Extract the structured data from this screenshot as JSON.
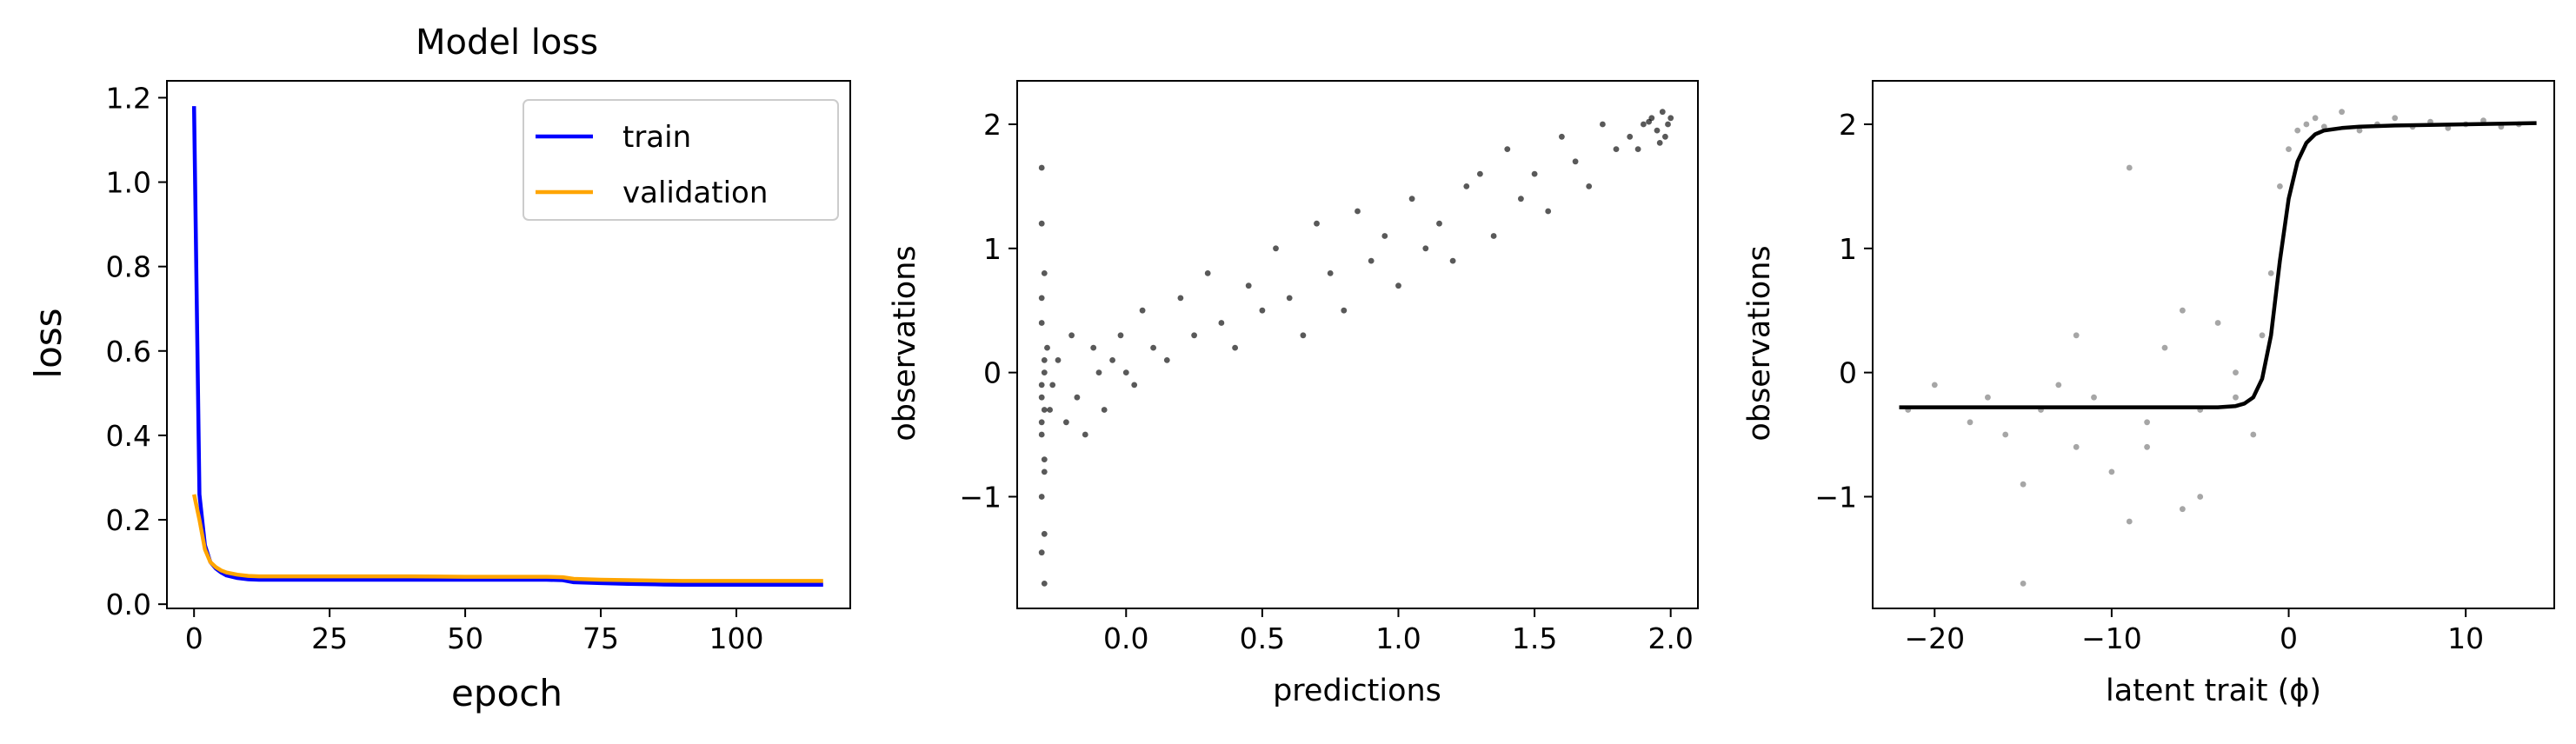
{
  "chart_data": [
    {
      "type": "line",
      "title": "Model loss",
      "xlabel": "epoch",
      "ylabel": "loss",
      "xlim": [
        -5,
        121
      ],
      "ylim": [
        -0.01,
        1.24
      ],
      "xticks": [
        0,
        25,
        50,
        75,
        100
      ],
      "xtick_labels": [
        "0",
        "25",
        "50",
        "75",
        "100"
      ],
      "yticks": [
        0.0,
        0.2,
        0.4,
        0.6,
        0.8,
        1.0,
        1.2
      ],
      "ytick_labels": [
        "0.0",
        "0.2",
        "0.4",
        "0.6",
        "0.8",
        "1.0",
        "1.2"
      ],
      "legend_position": "top-right",
      "grid": false,
      "series": [
        {
          "name": "train",
          "color": "#0000ff",
          "x": [
            0,
            1,
            2,
            3,
            4,
            5,
            6,
            8,
            10,
            12,
            15,
            20,
            30,
            40,
            50,
            60,
            65,
            68,
            70,
            75,
            80,
            85,
            90,
            100,
            110,
            116
          ],
          "y": [
            1.18,
            0.26,
            0.14,
            0.1,
            0.085,
            0.075,
            0.068,
            0.062,
            0.059,
            0.058,
            0.058,
            0.058,
            0.058,
            0.058,
            0.058,
            0.058,
            0.058,
            0.057,
            0.052,
            0.05,
            0.048,
            0.047,
            0.046,
            0.046,
            0.046,
            0.046
          ]
        },
        {
          "name": "validation",
          "color": "#ffa500",
          "x": [
            0,
            1,
            2,
            3,
            4,
            5,
            6,
            8,
            10,
            12,
            15,
            20,
            30,
            40,
            50,
            60,
            65,
            68,
            70,
            75,
            80,
            85,
            90,
            100,
            110,
            116
          ],
          "y": [
            0.26,
            0.2,
            0.13,
            0.1,
            0.088,
            0.08,
            0.075,
            0.07,
            0.067,
            0.066,
            0.066,
            0.066,
            0.066,
            0.066,
            0.065,
            0.065,
            0.065,
            0.064,
            0.06,
            0.058,
            0.057,
            0.056,
            0.055,
            0.055,
            0.055,
            0.055
          ]
        }
      ]
    },
    {
      "type": "scatter",
      "title": "",
      "xlabel": "predictions",
      "ylabel": "observations",
      "xlim": [
        -0.4,
        2.1
      ],
      "ylim": [
        -1.9,
        2.35
      ],
      "xticks": [
        0.0,
        0.5,
        1.0,
        1.5,
        2.0
      ],
      "xtick_labels": [
        "0.0",
        "0.5",
        "1.0",
        "1.5",
        "2.0"
      ],
      "yticks": [
        -1,
        0,
        1,
        2
      ],
      "ytick_labels": [
        "−1",
        "0",
        "1",
        "2"
      ],
      "grid": false,
      "point_color": "#000000",
      "point_opacity": 0.65,
      "series": [
        {
          "name": "",
          "x": [
            -0.31,
            -0.31,
            -0.3,
            -0.31,
            -0.3,
            -0.31,
            -0.3,
            -0.31,
            -0.3,
            -0.31,
            -0.3,
            -0.31,
            -0.3,
            -0.29,
            -0.31,
            -0.3,
            -0.31,
            -0.31,
            -0.3,
            -0.28,
            -0.27,
            -0.25,
            -0.22,
            -0.2,
            -0.18,
            -0.15,
            -0.12,
            -0.1,
            -0.08,
            -0.05,
            -0.02,
            0.0,
            0.03,
            0.06,
            0.1,
            0.15,
            0.2,
            0.25,
            0.3,
            0.35,
            0.4,
            0.45,
            0.5,
            0.55,
            0.6,
            0.65,
            0.7,
            0.75,
            0.8,
            0.85,
            0.9,
            0.95,
            1.0,
            1.05,
            1.1,
            1.15,
            1.2,
            1.25,
            1.3,
            1.35,
            1.4,
            1.45,
            1.5,
            1.55,
            1.6,
            1.65,
            1.7,
            1.75,
            1.8,
            1.85,
            1.9,
            1.93,
            1.95,
            1.97,
            1.98,
            1.99,
            2.0,
            1.96,
            1.92,
            1.88
          ],
          "y": [
            1.65,
            1.2,
            0.8,
            0.4,
            0.1,
            -0.1,
            -0.3,
            -0.5,
            -0.7,
            -1.0,
            -1.3,
            -1.45,
            -1.7,
            0.2,
            -0.2,
            0.0,
            -0.4,
            0.6,
            -0.8,
            -0.3,
            -0.1,
            0.1,
            -0.4,
            0.3,
            -0.2,
            -0.5,
            0.2,
            0.0,
            -0.3,
            0.1,
            0.3,
            0.0,
            -0.1,
            0.5,
            0.2,
            0.1,
            0.6,
            0.3,
            0.8,
            0.4,
            0.2,
            0.7,
            0.5,
            1.0,
            0.6,
            0.3,
            1.2,
            0.8,
            0.5,
            1.3,
            0.9,
            1.1,
            0.7,
            1.4,
            1.0,
            1.2,
            0.9,
            1.5,
            1.6,
            1.1,
            1.8,
            1.4,
            1.6,
            1.3,
            1.9,
            1.7,
            1.5,
            2.0,
            1.8,
            1.9,
            2.0,
            2.05,
            1.95,
            2.1,
            1.9,
            2.0,
            2.05,
            1.85,
            2.02,
            1.8
          ]
        }
      ]
    },
    {
      "type": "scatter",
      "title": "",
      "xlabel": "latent trait (ϕ)",
      "ylabel": "observations",
      "xlim": [
        -23.5,
        15
      ],
      "ylim": [
        -1.9,
        2.35
      ],
      "xticks": [
        -20,
        -10,
        0,
        10
      ],
      "xtick_labels": [
        "−20",
        "−10",
        "0",
        "10"
      ],
      "yticks": [
        -1,
        0,
        1,
        2
      ],
      "ytick_labels": [
        "−1",
        "0",
        "1",
        "2"
      ],
      "grid": false,
      "point_color": "#808080",
      "point_opacity": 0.7,
      "series": [
        {
          "name": "",
          "x": [
            -21.5,
            -20,
            -18,
            -17,
            -16,
            -15,
            -14,
            -13,
            -12,
            -11,
            -10,
            -9,
            -8,
            -7,
            -6,
            -5,
            -4,
            -3,
            -2,
            -1.5,
            -1,
            -0.5,
            0,
            0.5,
            1,
            1.5,
            2,
            3,
            4,
            5,
            6,
            7,
            8,
            9,
            10,
            11,
            12,
            13,
            -12,
            -9,
            -6,
            -15,
            -3,
            -8,
            -5
          ],
          "y": [
            -0.3,
            -0.1,
            -0.4,
            -0.2,
            -0.5,
            -1.7,
            -0.3,
            -0.1,
            -0.6,
            -0.2,
            -0.8,
            1.65,
            -0.4,
            0.2,
            -1.1,
            -0.3,
            0.4,
            -0.2,
            -0.5,
            0.3,
            0.8,
            1.5,
            1.8,
            1.95,
            2.0,
            2.05,
            1.98,
            2.1,
            1.95,
            2.0,
            2.05,
            1.98,
            2.02,
            1.97,
            2.0,
            2.03,
            1.98,
            2.0,
            0.3,
            -1.2,
            0.5,
            -0.9,
            0.0,
            -0.6,
            -1.0
          ]
        },
        {
          "name": "",
          "kind": "line",
          "color": "#000000",
          "x": [
            -22,
            -15,
            -10,
            -6,
            -4,
            -3,
            -2.5,
            -2,
            -1.5,
            -1,
            -0.5,
            0,
            0.5,
            1,
            1.5,
            2,
            3,
            4,
            6,
            10,
            14
          ],
          "y": [
            -0.28,
            -0.28,
            -0.28,
            -0.28,
            -0.28,
            -0.27,
            -0.25,
            -0.2,
            -0.05,
            0.3,
            0.9,
            1.4,
            1.7,
            1.85,
            1.92,
            1.95,
            1.97,
            1.98,
            1.99,
            2.0,
            2.01
          ]
        }
      ]
    }
  ]
}
